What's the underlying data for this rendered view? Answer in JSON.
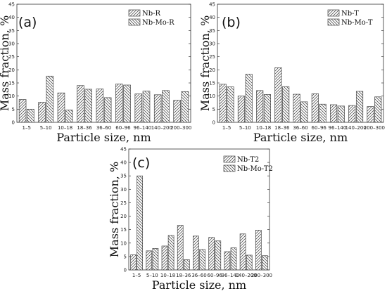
{
  "chart_data": [
    {
      "type": "bar",
      "panel_tag": "(a)",
      "xlabel": "Particle size, nm",
      "ylabel": "Mass fraction, %",
      "ylim": [
        0,
        45
      ],
      "yticks": [
        0,
        5,
        10,
        15,
        20,
        25,
        30,
        35,
        40,
        45
      ],
      "legend_position": "top-right",
      "categories": [
        "1–5",
        "5–10",
        "10–18",
        "18–36",
        "36–60",
        "60–96",
        "96–140",
        "140–200",
        "200–300"
      ],
      "series": [
        {
          "name": "Nb-R",
          "pattern": "forward-hatch",
          "values": [
            8.7,
            7.6,
            11.2,
            14.0,
            12.7,
            14.6,
            10.8,
            10.5,
            8.4
          ]
        },
        {
          "name": "Nb-Mo-R",
          "pattern": "back-hatch",
          "values": [
            5.0,
            17.6,
            4.7,
            12.6,
            9.4,
            14.2,
            11.9,
            12.1,
            11.7
          ]
        }
      ]
    },
    {
      "type": "bar",
      "panel_tag": "(b)",
      "xlabel": "Particle size, nm",
      "ylabel": "Mass fraction, %",
      "ylim": [
        0,
        45
      ],
      "yticks": [
        0,
        5,
        10,
        15,
        20,
        25,
        30,
        35,
        40,
        45
      ],
      "legend_position": "top-right",
      "categories": [
        "1–5",
        "5–10",
        "10–18",
        "18–36",
        "36–60",
        "60–96",
        "96–140",
        "140–200",
        "200–300"
      ],
      "series": [
        {
          "name": "Nb-T",
          "pattern": "forward-hatch",
          "values": [
            14.5,
            10.0,
            12.1,
            20.8,
            10.7,
            10.9,
            6.7,
            6.4,
            6.0
          ]
        },
        {
          "name": "Nb-Mo-T",
          "pattern": "back-hatch",
          "values": [
            13.5,
            18.3,
            10.6,
            13.6,
            7.8,
            6.9,
            6.2,
            11.8,
            9.7
          ]
        }
      ]
    },
    {
      "type": "bar",
      "panel_tag": "(c)",
      "xlabel": "Particle size, nm",
      "ylabel": "Mass fraction, %",
      "ylim": [
        0,
        45
      ],
      "yticks": [
        0,
        5,
        10,
        15,
        20,
        25,
        30,
        35,
        40,
        45
      ],
      "legend_position": "top-right",
      "categories": [
        "1–5",
        "5–10",
        "10–18",
        "18–36",
        "36–60",
        "60–96",
        "96–140",
        "140–200",
        "200–300"
      ],
      "series": [
        {
          "name": "Nb-T2",
          "pattern": "forward-hatch",
          "values": [
            5.6,
            7.1,
            8.9,
            16.6,
            12.6,
            12.1,
            6.8,
            13.4,
            14.8
          ]
        },
        {
          "name": "Nb-Mo-T2",
          "pattern": "back-hatch",
          "values": [
            35.0,
            8.0,
            12.8,
            3.8,
            7.6,
            10.8,
            8.2,
            5.5,
            5.3
          ]
        }
      ]
    }
  ]
}
